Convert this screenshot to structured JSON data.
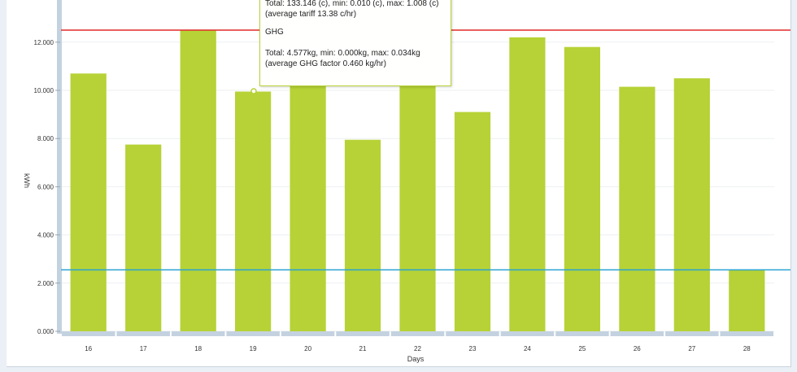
{
  "chart_data": {
    "type": "bar",
    "categories": [
      "16",
      "17",
      "18",
      "19",
      "20",
      "21",
      "22",
      "23",
      "24",
      "25",
      "26",
      "27",
      "28"
    ],
    "values": [
      10.7,
      7.75,
      12.5,
      9.95,
      10.3,
      7.95,
      11.3,
      9.1,
      12.2,
      11.8,
      10.15,
      10.5,
      2.55
    ],
    "ylabel": "kWh",
    "xlabel": "Days",
    "y_ticks": [
      "0.000",
      "2.000",
      "4.000",
      "6.000",
      "8.000",
      "10.000",
      "12.000"
    ],
    "ylim": [
      0,
      14
    ],
    "reference_lines": [
      {
        "value": 12.5,
        "color": "#e02b2b"
      },
      {
        "value": 2.55,
        "color": "#2aa3d3"
      }
    ],
    "bar_color": "#b6d236",
    "grid": true
  },
  "tooltip": {
    "cost_total": "Total: 133.146 (c), min: 0.010 (c), max: 1.008 (c)",
    "cost_avg": "(average tariff 13.38 c/hr)",
    "ghg_title": "GHG",
    "ghg_total": "Total: 4.577kg, min: 0.000kg, max: 0.034kg",
    "ghg_avg": "(average GHG factor 0.460 kg/hr)"
  }
}
